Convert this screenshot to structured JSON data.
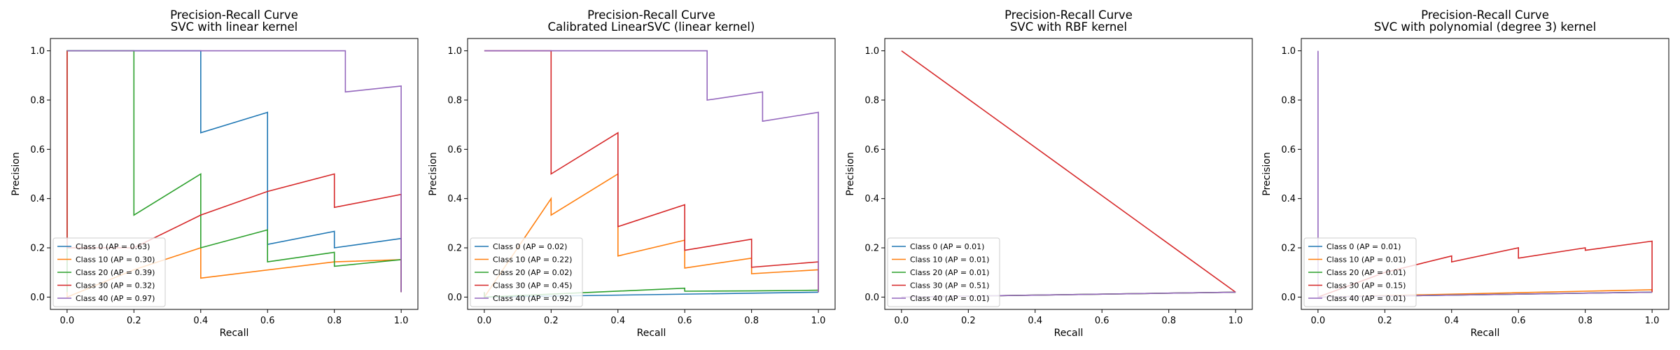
{
  "chart_data": [
    {
      "type": "line",
      "title": "Precision-Recall Curve",
      "subtitle": "SVC with linear kernel",
      "xlabel": "Recall",
      "ylabel": "Precision",
      "xlim": [
        -0.05,
        1.05
      ],
      "ylim": [
        -0.05,
        1.05
      ],
      "xticks": [
        "0.0",
        "0.2",
        "0.4",
        "0.6",
        "0.8",
        "1.0"
      ],
      "yticks": [
        "0.0",
        "0.2",
        "0.4",
        "0.6",
        "0.8",
        "1.0"
      ],
      "legend_position": "lower-left",
      "series": [
        {
          "name": "Class 0 (AP = 0.63)",
          "color": "#1f77b4",
          "x": [
            1.0,
            1.0,
            0.8,
            0.8,
            0.6,
            0.6,
            0.4,
            0.4,
            0.2,
            0.0,
            0.0
          ],
          "y": [
            0.02,
            0.238,
            0.2,
            0.267,
            0.214,
            0.75,
            0.667,
            1.0,
            1.0,
            1.0,
            1.0
          ]
        },
        {
          "name": "Class 10 (AP = 0.30)",
          "color": "#ff7f0e",
          "x": [
            1.0,
            1.0,
            0.8,
            0.4,
            0.4,
            0.2,
            0.0,
            0.0
          ],
          "y": [
            0.02,
            0.152,
            0.143,
            0.077,
            0.2,
            0.111,
            0.0,
            0.02
          ]
        },
        {
          "name": "Class 20 (AP = 0.39)",
          "color": "#2ca02c",
          "x": [
            1.0,
            1.0,
            0.8,
            0.8,
            0.6,
            0.6,
            0.4,
            0.4,
            0.2,
            0.2,
            0.0,
            0.0
          ],
          "y": [
            0.02,
            0.152,
            0.125,
            0.182,
            0.143,
            0.273,
            0.2,
            0.5,
            0.333,
            1.0,
            1.0,
            0.02
          ]
        },
        {
          "name": "Class 30 (AP = 0.32)",
          "color": "#d62728",
          "x": [
            1.0,
            1.0,
            0.8,
            0.8,
            0.6,
            0.4,
            0.2,
            0.0,
            0.0
          ],
          "y": [
            0.02,
            0.417,
            0.364,
            0.5,
            0.429,
            0.333,
            0.2,
            0.2,
            1.0
          ]
        },
        {
          "name": "Class 40 (AP = 0.97)",
          "color": "#9467bd",
          "x": [
            1.0,
            1.0,
            0.833,
            0.833,
            0.0,
            0.0
          ],
          "y": [
            0.02,
            0.857,
            0.833,
            1.0,
            1.0,
            1.0
          ]
        }
      ]
    },
    {
      "type": "line",
      "title": "Precision-Recall Curve",
      "subtitle": "Calibrated LinearSVC (linear kernel)",
      "xlabel": "Recall",
      "ylabel": "Precision",
      "xlim": [
        -0.05,
        1.05
      ],
      "ylim": [
        -0.05,
        1.05
      ],
      "xticks": [
        "0.0",
        "0.2",
        "0.4",
        "0.6",
        "0.8",
        "1.0"
      ],
      "yticks": [
        "0.0",
        "0.2",
        "0.4",
        "0.6",
        "0.8",
        "1.0"
      ],
      "legend_position": "lower-left",
      "series": [
        {
          "name": "Class 0 (AP = 0.02)",
          "color": "#1f77b4",
          "x": [
            1.0,
            0.0
          ],
          "y": [
            0.02,
            0.0
          ]
        },
        {
          "name": "Class 10 (AP = 0.22)",
          "color": "#ff7f0e",
          "x": [
            1.0,
            1.0,
            0.8,
            0.8,
            0.6,
            0.6,
            0.4,
            0.4,
            0.2,
            0.2,
            0.0,
            0.0
          ],
          "y": [
            0.02,
            0.111,
            0.095,
            0.158,
            0.118,
            0.231,
            0.167,
            0.5,
            0.333,
            0.4,
            0.0,
            0.02
          ]
        },
        {
          "name": "Class 20 (AP = 0.02)",
          "color": "#2ca02c",
          "x": [
            1.0,
            0.8,
            0.6,
            0.6,
            0.0,
            0.0
          ],
          "y": [
            0.028,
            0.025,
            0.024,
            0.036,
            0.0,
            0.02
          ]
        },
        {
          "name": "Class 30 (AP = 0.45)",
          "color": "#d62728",
          "x": [
            1.0,
            1.0,
            0.8,
            0.8,
            0.6,
            0.6,
            0.4,
            0.4,
            0.2,
            0.2,
            0.0,
            0.0
          ],
          "y": [
            0.02,
            0.143,
            0.121,
            0.235,
            0.19,
            0.375,
            0.286,
            0.667,
            0.5,
            1.0,
            1.0,
            1.0
          ]
        },
        {
          "name": "Class 40 (AP = 0.92)",
          "color": "#9467bd",
          "x": [
            1.0,
            1.0,
            0.833,
            0.833,
            0.667,
            0.667,
            0.0,
            0.0
          ],
          "y": [
            0.02,
            0.75,
            0.714,
            0.833,
            0.8,
            1.0,
            1.0,
            1.0
          ]
        }
      ]
    },
    {
      "type": "line",
      "title": "Precision-Recall Curve",
      "subtitle": "SVC with RBF kernel",
      "xlabel": "Recall",
      "ylabel": "Precision",
      "xlim": [
        -0.05,
        1.05
      ],
      "ylim": [
        -0.05,
        1.05
      ],
      "xticks": [
        "0.0",
        "0.2",
        "0.4",
        "0.6",
        "0.8",
        "1.0"
      ],
      "yticks": [
        "0.0",
        "0.2",
        "0.4",
        "0.6",
        "0.8",
        "1.0"
      ],
      "legend_position": "lower-left",
      "series": [
        {
          "name": "Class 0 (AP = 0.01)",
          "color": "#1f77b4",
          "x": [
            1.0,
            0.0,
            0.0
          ],
          "y": [
            0.02,
            0.0,
            0.0
          ]
        },
        {
          "name": "Class 10 (AP = 0.01)",
          "color": "#ff7f0e",
          "x": [
            1.0,
            0.0,
            0.0
          ],
          "y": [
            0.02,
            0.0,
            0.0
          ]
        },
        {
          "name": "Class 20 (AP = 0.01)",
          "color": "#2ca02c",
          "x": [
            1.0,
            0.0,
            0.0
          ],
          "y": [
            0.02,
            0.0,
            0.0
          ]
        },
        {
          "name": "Class 30 (AP = 0.51)",
          "color": "#d62728",
          "x": [
            1.0,
            0.0,
            0.0
          ],
          "y": [
            0.02,
            1.0,
            1.0
          ]
        },
        {
          "name": "Class 40 (AP = 0.01)",
          "color": "#9467bd",
          "x": [
            1.0,
            0.0,
            0.0
          ],
          "y": [
            0.02,
            0.0,
            0.0
          ]
        }
      ]
    },
    {
      "type": "line",
      "title": "Precision-Recall Curve",
      "subtitle": "SVC with polynomial (degree 3) kernel",
      "xlabel": "Recall",
      "ylabel": "Precision",
      "xlim": [
        -0.05,
        1.05
      ],
      "ylim": [
        -0.05,
        1.05
      ],
      "xticks": [
        "0.0",
        "0.2",
        "0.4",
        "0.6",
        "0.8",
        "1.0"
      ],
      "yticks": [
        "0.0",
        "0.2",
        "0.4",
        "0.6",
        "0.8",
        "1.0"
      ],
      "legend_position": "lower-left",
      "series": [
        {
          "name": "Class 0 (AP = 0.01)",
          "color": "#1f77b4",
          "x": [
            1.0,
            0.0,
            0.0
          ],
          "y": [
            0.02,
            0.0,
            0.0
          ]
        },
        {
          "name": "Class 10 (AP = 0.01)",
          "color": "#ff7f0e",
          "x": [
            1.0,
            1.0,
            0.0,
            0.0
          ],
          "y": [
            0.02,
            0.03,
            0.0,
            0.0
          ]
        },
        {
          "name": "Class 20 (AP = 0.01)",
          "color": "#2ca02c",
          "x": [
            1.0,
            0.0,
            0.0
          ],
          "y": [
            0.02,
            0.0,
            0.0
          ]
        },
        {
          "name": "Class 30 (AP = 0.15)",
          "color": "#d62728",
          "x": [
            1.0,
            1.0,
            0.8,
            0.8,
            0.6,
            0.6,
            0.4,
            0.4,
            0.2,
            0.0,
            0.0
          ],
          "y": [
            0.02,
            0.227,
            0.19,
            0.2,
            0.158,
            0.2,
            0.143,
            0.167,
            0.1,
            0.0,
            0.02
          ]
        },
        {
          "name": "Class 40 (AP = 0.01)",
          "color": "#9467bd",
          "x": [
            1.0,
            0.0,
            0.0
          ],
          "y": [
            0.02,
            0.0,
            1.0
          ]
        }
      ]
    }
  ]
}
